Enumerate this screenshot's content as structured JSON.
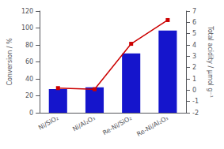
{
  "chart_data": {
    "type": "bar",
    "categories": [
      "Ni/SiO₂",
      "Ni/Al₂O₃",
      "Re-Ni/SiO₂",
      "Re-Ni/Al₂O₃"
    ],
    "ylabel": "Conversion / %",
    "y2label": "Total acidity / μmol g⁻¹",
    "ylim": [
      0,
      120
    ],
    "yticks": [
      0,
      20,
      40,
      60,
      80,
      100,
      120
    ],
    "y2lim": [
      -2,
      7
    ],
    "y2ticks": [
      -2,
      -1,
      0,
      1,
      2,
      3,
      4,
      5,
      6,
      7
    ],
    "grid": false,
    "series": [
      {
        "type": "bar",
        "color": "#1515CC",
        "values": [
          28,
          30,
          70,
          97
        ]
      },
      {
        "type": "line",
        "color": "#CC0000",
        "marker": "square",
        "axis": "y2",
        "values": [
          0.18,
          0.08,
          4.1,
          6.2
        ]
      }
    ]
  }
}
